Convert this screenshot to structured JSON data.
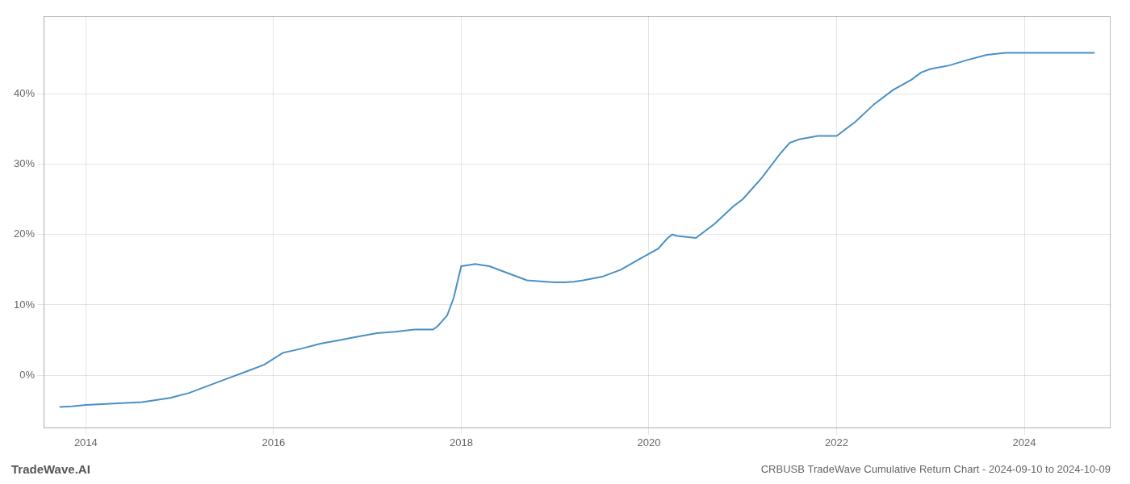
{
  "chart_data": {
    "type": "line",
    "title": "CRBUSB TradeWave Cumulative Return Chart - 2024-09-10 to 2024-10-09",
    "annotations": [
      "TradeWave.AI"
    ],
    "x": [
      2013.72,
      2013.85,
      2014.0,
      2014.3,
      2014.6,
      2014.9,
      2015.1,
      2015.3,
      2015.5,
      2015.7,
      2015.9,
      2016.1,
      2016.3,
      2016.5,
      2016.7,
      2016.9,
      2017.1,
      2017.3,
      2017.5,
      2017.7,
      2017.75,
      2017.85,
      2017.92,
      2018.0,
      2018.1,
      2018.15,
      2018.2,
      2018.3,
      2018.5,
      2018.7,
      2018.9,
      2019.0,
      2019.1,
      2019.2,
      2019.3,
      2019.5,
      2019.7,
      2019.9,
      2020.1,
      2020.2,
      2020.25,
      2020.3,
      2020.5,
      2020.7,
      2020.9,
      2021.0,
      2021.2,
      2021.4,
      2021.5,
      2021.6,
      2021.8,
      2022.0,
      2022.2,
      2022.4,
      2022.6,
      2022.8,
      2022.9,
      2023.0,
      2023.2,
      2023.4,
      2023.6,
      2023.8,
      2024.0,
      2024.2,
      2024.4,
      2024.6,
      2024.75
    ],
    "values": [
      -4.5,
      -4.4,
      -4.2,
      -4.0,
      -3.8,
      -3.2,
      -2.5,
      -1.5,
      -0.5,
      0.5,
      1.5,
      3.2,
      3.8,
      4.5,
      5.0,
      5.5,
      6.0,
      6.2,
      6.5,
      6.5,
      7.0,
      8.5,
      11.0,
      15.5,
      15.7,
      15.8,
      15.7,
      15.5,
      14.5,
      13.5,
      13.3,
      13.2,
      13.2,
      13.3,
      13.5,
      14.0,
      15.0,
      16.5,
      18.0,
      19.5,
      20.0,
      19.8,
      19.5,
      21.5,
      24.0,
      25.0,
      28.0,
      31.5,
      33.0,
      33.5,
      34.0,
      34.0,
      36.0,
      38.5,
      40.5,
      42.0,
      43.0,
      43.5,
      44.0,
      44.8,
      45.5,
      45.8,
      45.8,
      45.8,
      45.8,
      45.8,
      45.8
    ],
    "color": "#4a90c4",
    "xlim": [
      2013.55,
      2024.92
    ],
    "xticks": [
      2014,
      2016,
      2018,
      2020,
      2022,
      2024
    ],
    "ylim": [
      -7.5,
      51
    ],
    "yticks": [
      {
        "value": 0,
        "label": "0%"
      },
      {
        "value": 10,
        "label": "10%"
      },
      {
        "value": 20,
        "label": "20%"
      },
      {
        "value": 30,
        "label": "30%"
      },
      {
        "value": 40,
        "label": "40%"
      }
    ],
    "grid": true
  }
}
